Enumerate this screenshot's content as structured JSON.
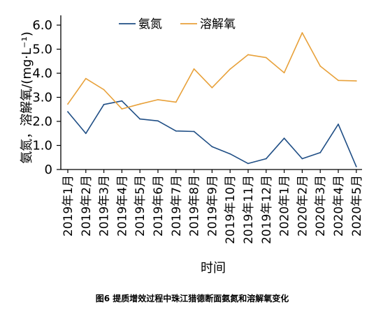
{
  "chart_data": {
    "type": "line",
    "categories": [
      "2019年1月",
      "2019年2月",
      "2019年3月",
      "2019年4月",
      "2019年5月",
      "2019年6月",
      "2019年7月",
      "2019年8月",
      "2019年9月",
      "2019年10月",
      "2019年11月",
      "2019年12月",
      "2020年1月",
      "2020年2月",
      "2020年3月",
      "2020年4月",
      "2020年5月"
    ],
    "series": [
      {
        "name": "氨氮",
        "color": "#1f4e85",
        "values": [
          2.4,
          1.5,
          2.7,
          2.85,
          2.1,
          2.02,
          1.6,
          1.58,
          0.95,
          0.65,
          0.25,
          0.45,
          1.3,
          0.45,
          0.7,
          1.88,
          0.12
        ]
      },
      {
        "name": "溶解氧",
        "color": "#e8a13a",
        "values": [
          2.72,
          3.78,
          3.32,
          2.52,
          2.72,
          2.9,
          2.8,
          4.18,
          3.4,
          4.17,
          4.77,
          4.65,
          4.02,
          5.68,
          4.3,
          3.7,
          3.68
        ]
      }
    ],
    "ylim": [
      0,
      6.0
    ],
    "yticks": [
      "0",
      "1.0",
      "2.0",
      "3.0",
      "4.0",
      "5.0",
      "6.0"
    ],
    "ylabel": "氨氮，溶解氧/(mg·L⁻¹)",
    "xlabel": "时间",
    "legend_position": "top"
  },
  "caption": "图6  提质增效过程中珠江猎德断面氨氮和溶解氧变化"
}
